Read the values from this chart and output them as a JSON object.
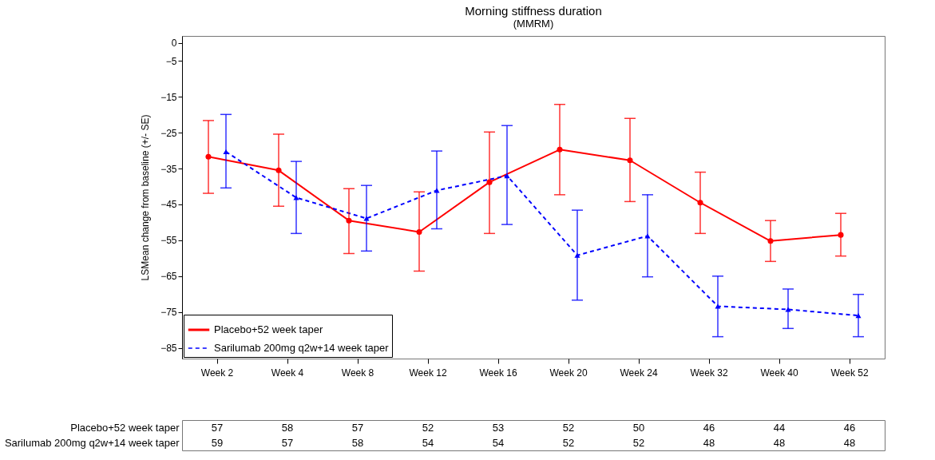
{
  "chart_data": {
    "type": "line",
    "title": "Morning stiffness duration",
    "subtitle": "(MMRM)",
    "ylabel": "LSMean change from baseline (+/- SE)",
    "categories": [
      "Week 2",
      "Week 4",
      "Week 8",
      "Week 12",
      "Week 16",
      "Week 20",
      "Week 24",
      "Week 32",
      "Week 40",
      "Week 52"
    ],
    "series": [
      {
        "name": "Placebo+52 week taper",
        "color": "#ff0000",
        "marker": "circle",
        "line_style": "solid",
        "values": [
          -31.7,
          -35.5,
          -49.5,
          -52.7,
          -38.8,
          -29.7,
          -32.7,
          -44.5,
          -55.2,
          -53.5
        ],
        "errors": [
          [
            -41.9,
            -21.6
          ],
          [
            -45.5,
            -25.4
          ],
          [
            -58.7,
            -40.6
          ],
          [
            -63.6,
            -41.5
          ],
          [
            -53.1,
            -24.8
          ],
          [
            -42.3,
            -17.1
          ],
          [
            -44.2,
            -21.0
          ],
          [
            -53.1,
            -36.0
          ],
          [
            -60.9,
            -49.5
          ],
          [
            -59.4,
            -47.5
          ]
        ]
      },
      {
        "name": "Sarilumab 200mg q2w+14 week taper",
        "color": "#0000ff",
        "marker": "triangle",
        "line_style": "dashed",
        "values": [
          -30.3,
          -43.1,
          -48.9,
          -41.1,
          -37.0,
          -59.2,
          -53.8,
          -73.4,
          -74.3,
          -76.0
        ],
        "errors": [
          [
            -40.4,
            -19.9
          ],
          [
            -53.1,
            -33.0
          ],
          [
            -58.0,
            -39.7
          ],
          [
            -51.8,
            -30.1
          ],
          [
            -50.6,
            -23.0
          ],
          [
            -71.7,
            -46.6
          ],
          [
            -65.2,
            -42.3
          ],
          [
            -81.9,
            -65.0
          ],
          [
            -79.6,
            -68.6
          ],
          [
            -81.9,
            -70.1
          ]
        ]
      }
    ],
    "ylim": [
      -88,
      2
    ],
    "yticks": [
      0,
      -5,
      -15,
      -25,
      -35,
      -45,
      -55,
      -65,
      -75,
      -85
    ],
    "grid": false,
    "legend": "bottom left",
    "annotations": [
      "Placebo+52 week taper",
      "57",
      "58",
      "57",
      "52",
      "53",
      "52",
      "50",
      "46",
      "44",
      "46",
      "Sarilumab 200mg q2w+14 week taper",
      "59",
      "57",
      "58",
      "54",
      "54",
      "52",
      "52",
      "48",
      "48",
      "48"
    ]
  }
}
